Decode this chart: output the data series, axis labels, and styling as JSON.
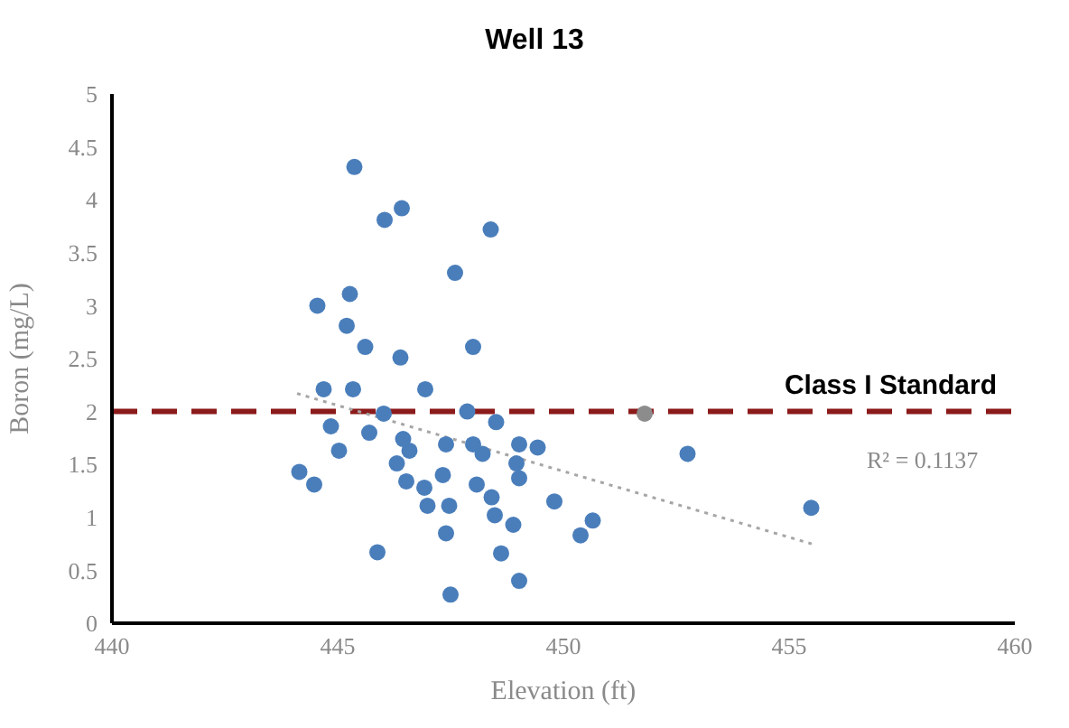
{
  "chart_data": {
    "type": "scatter",
    "title": "Well 13",
    "xlabel": "Elevation (ft)",
    "ylabel": "Boron (mg/L)",
    "xlim": [
      440,
      460
    ],
    "xticks": [
      440,
      445,
      450,
      455,
      460
    ],
    "ylim": [
      0,
      5
    ],
    "yticks": [
      0,
      0.5,
      1,
      1.5,
      2,
      2.5,
      3,
      3.5,
      4,
      4.5,
      5
    ],
    "series": [
      {
        "marker": "circle",
        "color": "#4a7ebb",
        "x": [
          445.37,
          446.04,
          446.42,
          448.39,
          447.6,
          444.55,
          445.27,
          445.2,
          445.61,
          446.39,
          448.0,
          446.94,
          444.69,
          445.34,
          444.85,
          445.03,
          446.02,
          445.7,
          446.45,
          446.59,
          446.31,
          447.87,
          448.51,
          447.4,
          448.0,
          448.21,
          449.02,
          449.43,
          448.96,
          449.02,
          444.15,
          444.48,
          446.52,
          446.92,
          447.33,
          448.08,
          448.41,
          446.99,
          447.47,
          448.48,
          448.89,
          449.8,
          450.65,
          450.38,
          447.4,
          445.88,
          448.62,
          449.02,
          447.5,
          452.75,
          455.49
        ],
        "values": [
          4.31,
          3.81,
          3.92,
          3.72,
          3.31,
          3.0,
          3.11,
          2.81,
          2.61,
          2.51,
          2.61,
          2.21,
          2.21,
          2.21,
          1.86,
          1.63,
          1.98,
          1.8,
          1.74,
          1.63,
          1.51,
          2.0,
          1.9,
          1.69,
          1.69,
          1.6,
          1.69,
          1.66,
          1.51,
          1.37,
          1.43,
          1.31,
          1.34,
          1.28,
          1.4,
          1.31,
          1.19,
          1.11,
          1.11,
          1.02,
          0.93,
          1.15,
          0.97,
          0.83,
          0.85,
          0.67,
          0.66,
          0.4,
          0.27,
          1.6,
          1.09
        ]
      },
      {
        "marker": "circle",
        "color": "#8c8c8c",
        "x": [
          451.8
        ],
        "values": [
          1.98
        ]
      },
      {
        "type": "line",
        "color": "#a6a6a6",
        "line_style": "dotted",
        "x": [
          444.1,
          455.5
        ],
        "values": [
          2.17,
          0.75
        ]
      }
    ],
    "ref_lines": [
      {
        "axis": "y",
        "value": 2,
        "label": "Class I Standard",
        "color": "#8b1a1a",
        "line_style": "dashed"
      }
    ],
    "annotations": [
      "R² = 0.1137"
    ]
  }
}
